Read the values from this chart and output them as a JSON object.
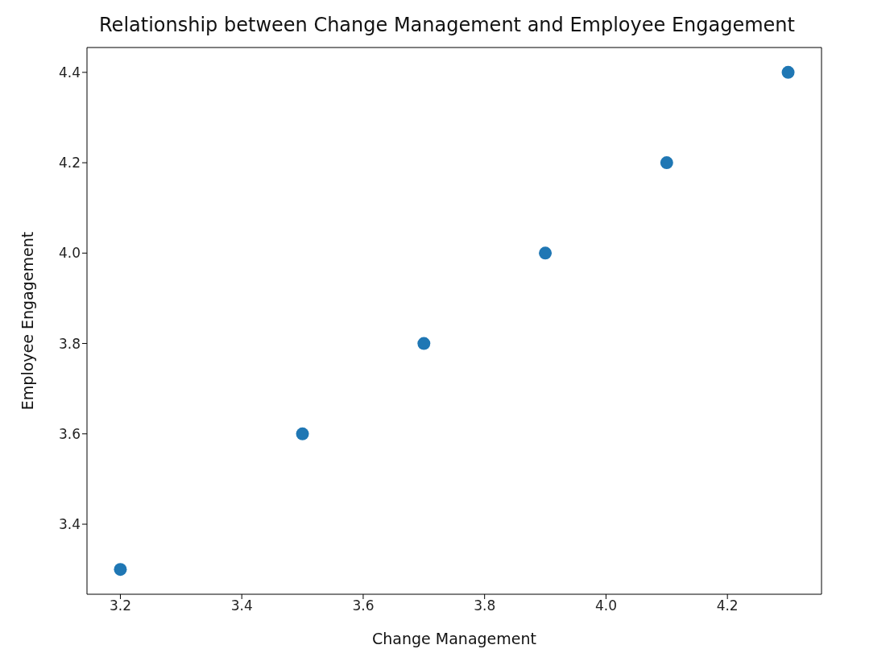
{
  "chart_data": {
    "type": "scatter",
    "title": "Relationship between Change Management and Employee Engagement",
    "xlabel": "Change Management",
    "ylabel": "Employee Engagement",
    "x": [
      3.2,
      3.5,
      3.7,
      3.9,
      4.1,
      4.3
    ],
    "values": [
      3.3,
      3.6,
      3.8,
      4.0,
      4.2,
      4.4
    ],
    "color": "#1f77b4",
    "marker": "circle",
    "xlim": [
      3.145,
      4.355
    ],
    "xticks": [
      3.2,
      3.4,
      3.6,
      3.8,
      {
        "value": 4,
        "label": "4.0"
      },
      4.2
    ],
    "ylim": [
      3.245,
      4.455
    ],
    "yticks": [
      3.4,
      3.6,
      3.8,
      {
        "value": 4,
        "label": "4.0"
      },
      4.2,
      4.4
    ],
    "grid": false,
    "legend": false
  }
}
